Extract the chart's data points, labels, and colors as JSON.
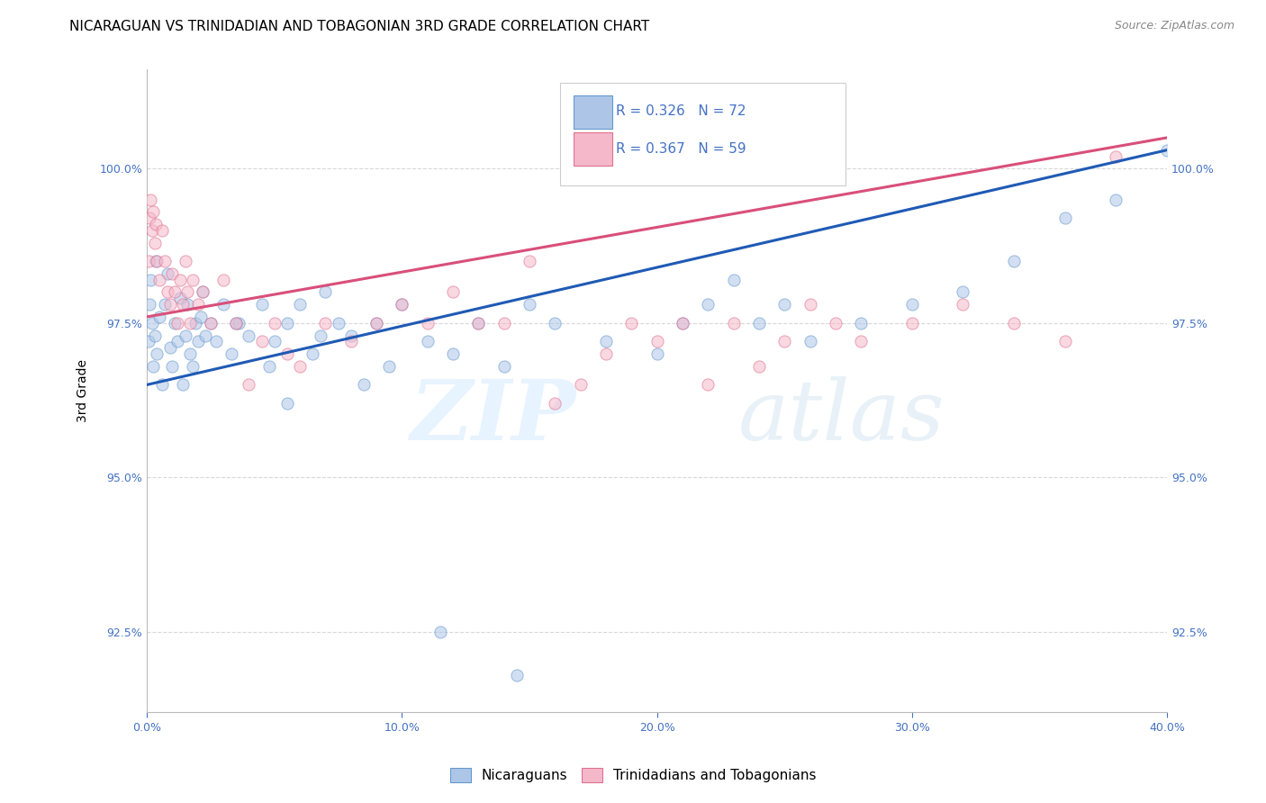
{
  "title": "NICARAGUAN VS TRINIDADIAN AND TOBAGONIAN 3RD GRADE CORRELATION CHART",
  "source": "Source: ZipAtlas.com",
  "ylabel": "3rd Grade",
  "xlim": [
    0.0,
    40.0
  ],
  "ylim": [
    91.2,
    101.6
  ],
  "xticks": [
    0.0,
    10.0,
    20.0,
    30.0,
    40.0
  ],
  "yticks": [
    92.5,
    95.0,
    97.5,
    100.0
  ],
  "ytick_labels": [
    "92.5%",
    "95.0%",
    "97.5%",
    "100.0%"
  ],
  "blue_color": "#adc6e8",
  "blue_edge": "#6699cc",
  "pink_color": "#f5b8cb",
  "pink_edge": "#e07090",
  "blue_line_color": "#1f5ab5",
  "pink_line_color": "#d94f7a",
  "R_blue": 0.326,
  "N_blue": 72,
  "R_pink": 0.367,
  "N_pink": 59,
  "legend_label_blue": "Nicaraguans",
  "legend_label_pink": "Trinidadians and Tobagonians",
  "blue_scatter_x": [
    0.05,
    0.1,
    0.15,
    0.2,
    0.25,
    0.3,
    0.35,
    0.4,
    0.5,
    0.6,
    0.7,
    0.8,
    0.9,
    1.0,
    1.1,
    1.2,
    1.3,
    1.4,
    1.5,
    1.6,
    1.7,
    1.8,
    1.9,
    2.0,
    2.1,
    2.2,
    2.3,
    2.5,
    2.7,
    3.0,
    3.3,
    3.6,
    4.0,
    4.5,
    5.0,
    5.5,
    6.0,
    6.5,
    7.0,
    8.0,
    9.0,
    10.0,
    11.0,
    12.0,
    13.0,
    14.0,
    15.0,
    16.0,
    18.0,
    20.0,
    21.0,
    22.0,
    23.0,
    24.0,
    25.0,
    26.0,
    28.0,
    30.0,
    32.0,
    34.0,
    36.0,
    38.0,
    40.0,
    5.5,
    7.5,
    3.5,
    4.8,
    6.8,
    8.5,
    9.5,
    11.5,
    14.5
  ],
  "blue_scatter_y": [
    97.2,
    97.8,
    98.2,
    97.5,
    96.8,
    97.3,
    98.5,
    97.0,
    97.6,
    96.5,
    97.8,
    98.3,
    97.1,
    96.8,
    97.5,
    97.2,
    97.9,
    96.5,
    97.3,
    97.8,
    97.0,
    96.8,
    97.5,
    97.2,
    97.6,
    98.0,
    97.3,
    97.5,
    97.2,
    97.8,
    97.0,
    97.5,
    97.3,
    97.8,
    97.2,
    97.5,
    97.8,
    97.0,
    98.0,
    97.3,
    97.5,
    97.8,
    97.2,
    97.0,
    97.5,
    96.8,
    97.8,
    97.5,
    97.2,
    97.0,
    97.5,
    97.8,
    98.2,
    97.5,
    97.8,
    97.2,
    97.5,
    97.8,
    98.0,
    98.5,
    99.2,
    99.5,
    100.3,
    96.2,
    97.5,
    97.5,
    96.8,
    97.3,
    96.5,
    96.8,
    92.5,
    91.8
  ],
  "pink_scatter_x": [
    0.05,
    0.1,
    0.15,
    0.2,
    0.25,
    0.3,
    0.35,
    0.4,
    0.5,
    0.6,
    0.7,
    0.8,
    0.9,
    1.0,
    1.1,
    1.2,
    1.3,
    1.4,
    1.5,
    1.6,
    1.7,
    1.8,
    2.0,
    2.2,
    2.5,
    3.0,
    3.5,
    4.0,
    4.5,
    5.0,
    5.5,
    6.0,
    7.0,
    8.0,
    9.0,
    10.0,
    11.0,
    12.0,
    13.0,
    14.0,
    15.0,
    16.0,
    17.0,
    18.0,
    19.0,
    20.0,
    21.0,
    22.0,
    23.0,
    24.0,
    25.0,
    26.0,
    27.0,
    28.0,
    30.0,
    32.0,
    34.0,
    36.0,
    38.0
  ],
  "pink_scatter_y": [
    98.5,
    99.2,
    99.5,
    99.0,
    99.3,
    98.8,
    99.1,
    98.5,
    98.2,
    99.0,
    98.5,
    98.0,
    97.8,
    98.3,
    98.0,
    97.5,
    98.2,
    97.8,
    98.5,
    98.0,
    97.5,
    98.2,
    97.8,
    98.0,
    97.5,
    98.2,
    97.5,
    96.5,
    97.2,
    97.5,
    97.0,
    96.8,
    97.5,
    97.2,
    97.5,
    97.8,
    97.5,
    98.0,
    97.5,
    97.5,
    98.5,
    96.2,
    96.5,
    97.0,
    97.5,
    97.2,
    97.5,
    96.5,
    97.5,
    96.8,
    97.2,
    97.8,
    97.5,
    97.2,
    97.5,
    97.8,
    97.5,
    97.2,
    100.2
  ],
  "blue_line_x0": 0.0,
  "blue_line_y0": 96.5,
  "blue_line_x1": 40.0,
  "blue_line_y1": 100.3,
  "pink_line_x0": 0.0,
  "pink_line_y0": 97.6,
  "pink_line_x1": 40.0,
  "pink_line_y1": 100.5,
  "watermark_zip": "ZIP",
  "watermark_atlas": "atlas",
  "title_fontsize": 11,
  "axis_label_fontsize": 10,
  "tick_fontsize": 9,
  "legend_fontsize": 11,
  "source_fontsize": 9,
  "marker_size": 90,
  "marker_alpha": 0.55,
  "grid_color": "#d8d8d8",
  "axis_color": "#bbbbbb",
  "blue_text_color": "#4472c4",
  "tick_color": "#4472c4"
}
